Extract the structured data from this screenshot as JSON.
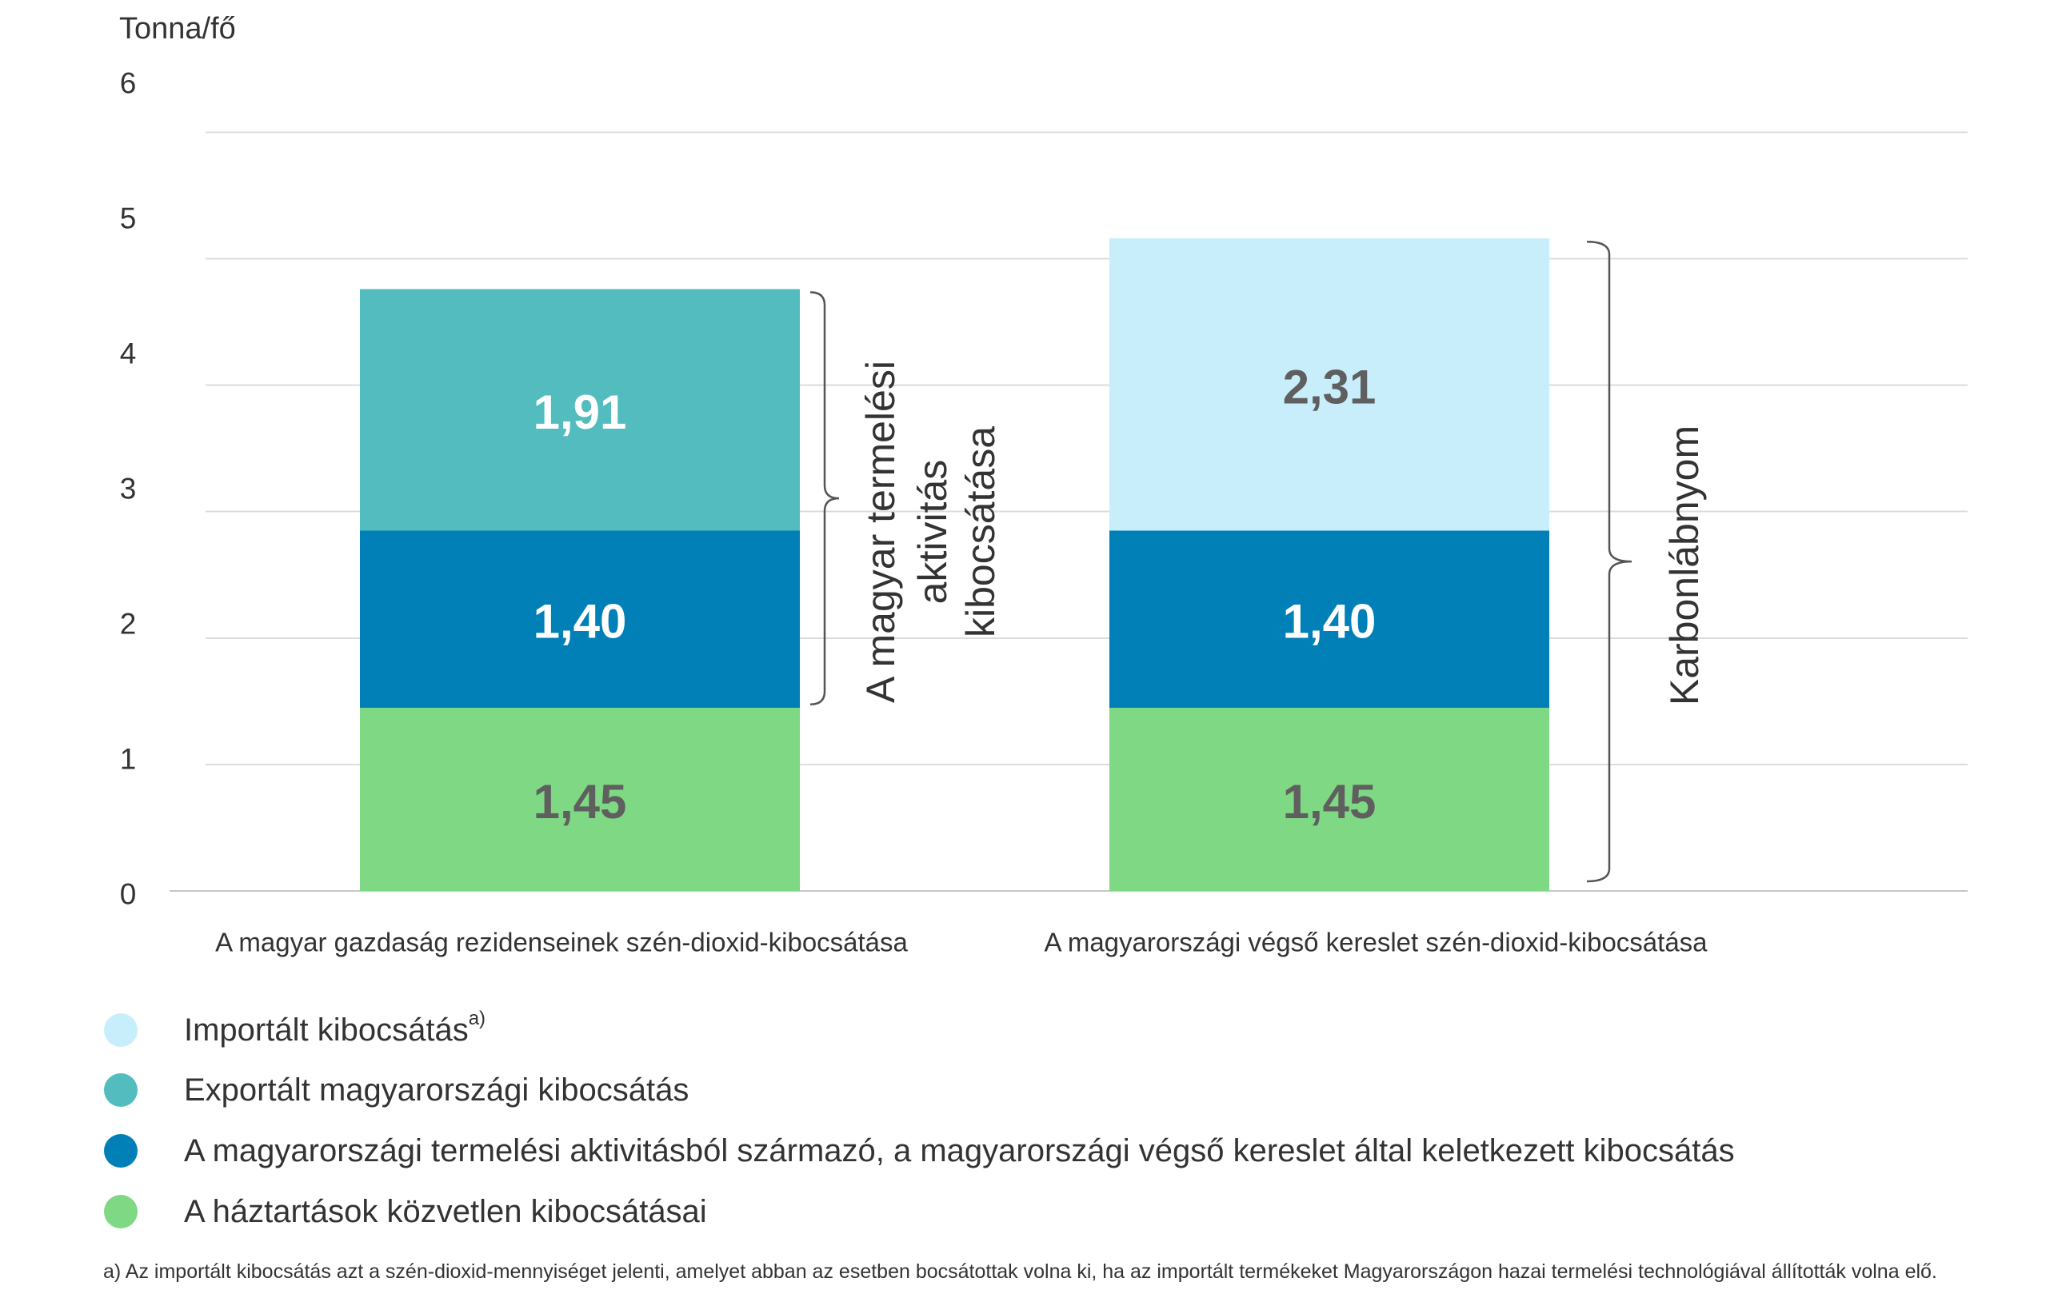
{
  "chart_data": {
    "type": "bar",
    "stacked": true,
    "ylabel": "Tonna/fő",
    "ylim": [
      0,
      6
    ],
    "yticks": [
      0,
      1,
      2,
      3,
      4,
      5,
      6
    ],
    "grid": true,
    "legend": "bottom-left",
    "categories": [
      "A magyar gazdaság rezidenseinek szén-dioxid-kibocsátása",
      "A magyarországi végső kereslet szén-dioxid-kibocsátása"
    ],
    "series": [
      {
        "name": "A háztartások közvetlen kibocsátásai",
        "values": [
          1.45,
          1.45
        ],
        "labels": [
          "1,45",
          "1,45"
        ],
        "color": "#7fd883",
        "label_color": "#5f5f5f"
      },
      {
        "name": "A magyarországi termelési aktivitásból származó, a magyarországi végső kereslet által keletkezett kibocsátás",
        "values": [
          1.4,
          1.4
        ],
        "labels": [
          "1,40",
          "1,40"
        ],
        "color": "#0080b7",
        "label_color": "#ffffff"
      },
      {
        "name": "Exportált magyarországi kibocsátás",
        "values": [
          1.91,
          null
        ],
        "labels": [
          "1,91",
          null
        ],
        "color": "#52bcbf",
        "label_color": "#ffffff"
      },
      {
        "name": "Importált kibocsátás",
        "note_marker": "a)",
        "values": [
          null,
          2.31
        ],
        "labels": [
          null,
          "2,31"
        ],
        "color": "#c8eefb",
        "label_color": "#5f5f5f"
      }
    ],
    "annotations": [
      {
        "from": 1.45,
        "to": 4.76,
        "text": [
          "A magyar termelési",
          "aktivitás",
          "kibocsátása"
        ]
      },
      {
        "from": 0,
        "to": 5.16,
        "text": [
          "Karbonlábnyom"
        ]
      }
    ],
    "footnote": "a) Az importált kibocsátás azt a szén-dioxid-mennyiséget jelenti, amelyet abban az esetben bocsátottak volna ki, ha az importált termékeket Magyarországon hazai termelési technológiával állították volna elő."
  }
}
